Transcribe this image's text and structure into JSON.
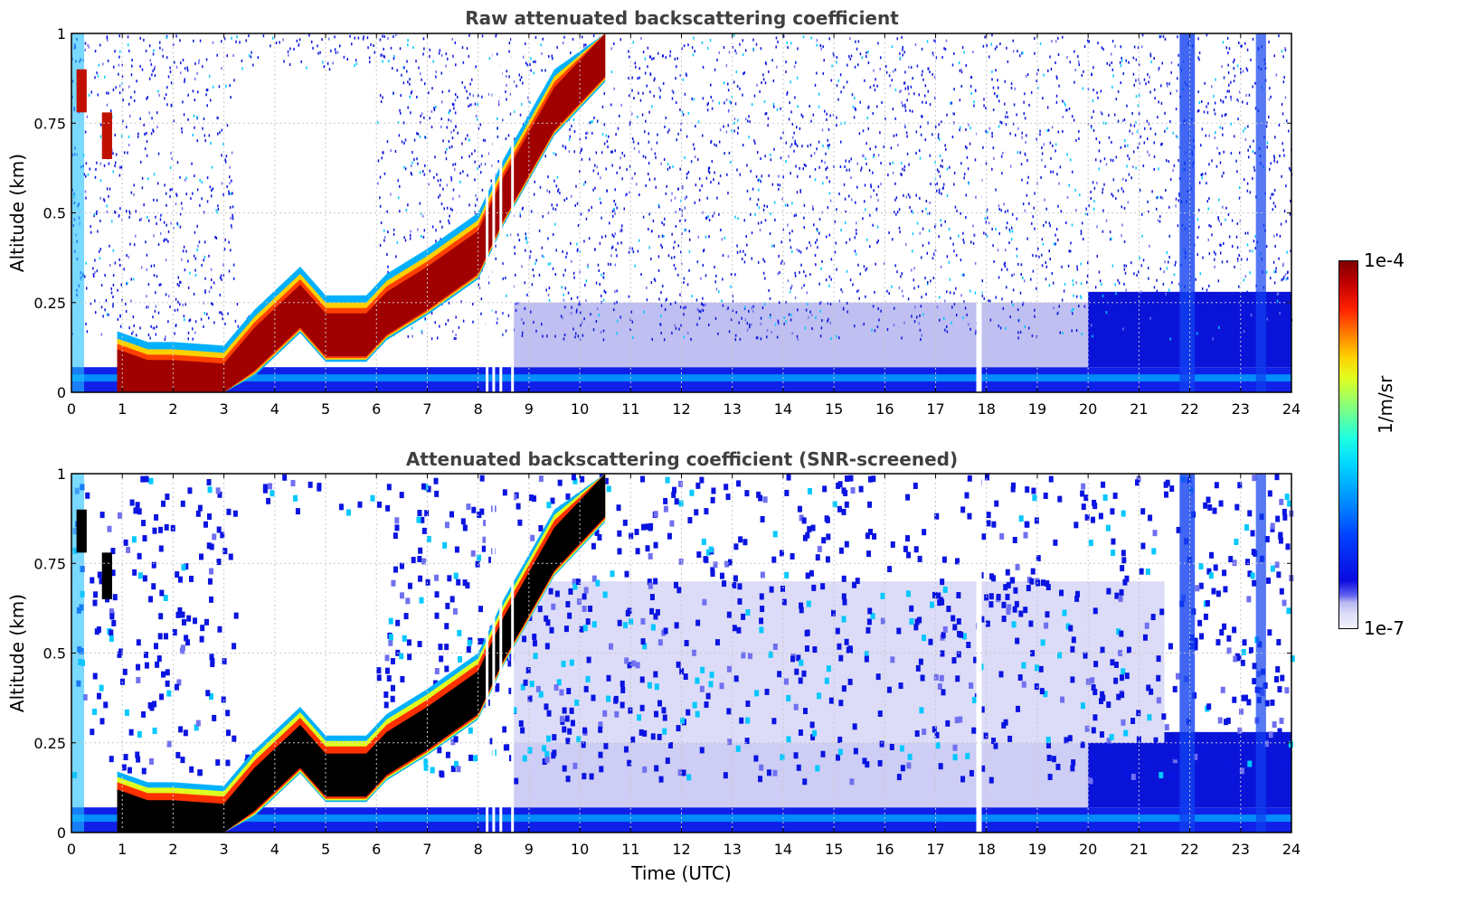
{
  "chart_data": [
    {
      "type": "heatmap",
      "title": "Raw attenuated backscattering coefficient",
      "xlabel": "",
      "ylabel": "Altitude (km)",
      "xlim": [
        0,
        24
      ],
      "ylim": [
        0,
        1
      ],
      "xticks": [
        "0",
        "1",
        "2",
        "3",
        "4",
        "5",
        "6",
        "7",
        "8",
        "9",
        "10",
        "11",
        "12",
        "13",
        "14",
        "15",
        "16",
        "17",
        "18",
        "19",
        "20",
        "21",
        "22",
        "23",
        "24"
      ],
      "yticks": [
        "0",
        "0.25",
        "0.5",
        "0.75",
        "1"
      ],
      "grid": true,
      "layer_top_km": [
        {
          "t": 0.9,
          "z": 0.12
        },
        {
          "t": 1.5,
          "z": 0.09
        },
        {
          "t": 2.0,
          "z": 0.09
        },
        {
          "t": 3.0,
          "z": 0.08
        },
        {
          "t": 3.6,
          "z": 0.18
        },
        {
          "t": 4.5,
          "z": 0.3
        },
        {
          "t": 5.0,
          "z": 0.22
        },
        {
          "t": 5.8,
          "z": 0.22
        },
        {
          "t": 6.2,
          "z": 0.28
        },
        {
          "t": 7.0,
          "z": 0.35
        },
        {
          "t": 8.0,
          "z": 0.45
        },
        {
          "t": 8.5,
          "z": 0.6
        },
        {
          "t": 9.5,
          "z": 0.85
        },
        {
          "t": 10.5,
          "z": 1.0
        }
      ],
      "colorbar": {
        "label": "1/m/sr",
        "min": "1e-7",
        "max": "1e-4",
        "scale": "log"
      }
    },
    {
      "type": "heatmap",
      "title": "Attenuated backscattering coefficient (SNR-screened)",
      "xlabel": "Time (UTC)",
      "ylabel": "Altitude (km)",
      "xlim": [
        0,
        24
      ],
      "ylim": [
        0,
        1
      ],
      "xticks": [
        "0",
        "1",
        "2",
        "3",
        "4",
        "5",
        "6",
        "7",
        "8",
        "9",
        "10",
        "11",
        "12",
        "13",
        "14",
        "15",
        "16",
        "17",
        "18",
        "19",
        "20",
        "21",
        "22",
        "23",
        "24"
      ],
      "yticks": [
        "0",
        "0.25",
        "0.5",
        "0.75",
        "1"
      ],
      "grid": true,
      "colorbar": {
        "label": "1/m/sr",
        "min": "1e-7",
        "max": "1e-4",
        "scale": "log"
      }
    }
  ],
  "colorbar": {
    "label": "1/m/sr",
    "max_label": "1e-4",
    "min_label": "1e-7"
  }
}
